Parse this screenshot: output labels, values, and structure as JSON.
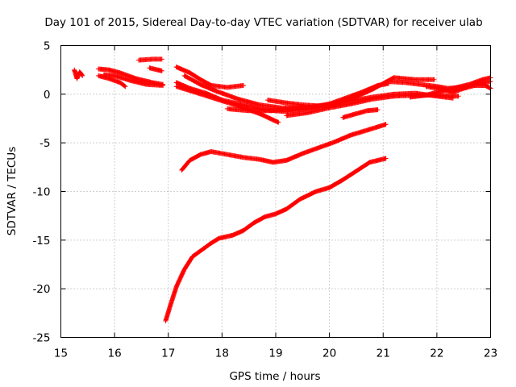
{
  "chart_data": {
    "type": "scatter",
    "title": "Day 101 of 2015, Sidereal Day-to-day VTEC variation (SDTVAR) for receiver ulab",
    "xlabel": "GPS time / hours",
    "ylabel": "SDTVAR / TECUs",
    "xlim": [
      15,
      23
    ],
    "ylim": [
      -25,
      5
    ],
    "xticks": [
      15,
      16,
      17,
      18,
      19,
      20,
      21,
      22,
      23
    ],
    "yticks": [
      -25,
      -20,
      -15,
      -10,
      -5,
      0,
      5
    ],
    "grid": true,
    "marker": "+",
    "color": "#ff0000",
    "series": [
      {
        "name": "trace-a",
        "points": [
          [
            15.25,
            2.5
          ],
          [
            15.3,
            1.6
          ],
          [
            15.35,
            2.3
          ],
          [
            15.4,
            1.9
          ]
        ]
      },
      {
        "name": "trace-b",
        "points": [
          [
            15.7,
            2.6
          ],
          [
            15.9,
            2.5
          ],
          [
            16.1,
            2.2
          ],
          [
            16.4,
            1.6
          ],
          [
            16.7,
            1.2
          ],
          [
            16.9,
            1.0
          ]
        ]
      },
      {
        "name": "trace-c",
        "points": [
          [
            15.7,
            1.9
          ],
          [
            15.9,
            1.6
          ],
          [
            16.1,
            1.2
          ],
          [
            16.2,
            0.8
          ]
        ]
      },
      {
        "name": "trace-d",
        "points": [
          [
            15.8,
            2.0
          ],
          [
            16.0,
            1.9
          ],
          [
            16.3,
            1.4
          ],
          [
            16.6,
            1.0
          ],
          [
            16.9,
            0.9
          ]
        ]
      },
      {
        "name": "trace-e",
        "points": [
          [
            16.45,
            3.5
          ],
          [
            16.7,
            3.6
          ],
          [
            16.88,
            3.6
          ]
        ]
      },
      {
        "name": "trace-f",
        "points": [
          [
            16.65,
            2.7
          ],
          [
            16.8,
            2.5
          ],
          [
            16.88,
            2.4
          ]
        ]
      },
      {
        "name": "trace-g",
        "points": [
          [
            17.15,
            2.8
          ],
          [
            17.4,
            2.2
          ],
          [
            17.6,
            1.5
          ],
          [
            17.8,
            0.9
          ],
          [
            18.1,
            0.7
          ],
          [
            18.4,
            0.9
          ]
        ]
      },
      {
        "name": "trace-h",
        "points": [
          [
            17.3,
            1.9
          ],
          [
            17.6,
            1.0
          ],
          [
            17.9,
            0.3
          ],
          [
            18.3,
            -0.5
          ],
          [
            18.7,
            -1.1
          ],
          [
            19.1,
            -1.4
          ],
          [
            19.4,
            -1.4
          ],
          [
            19.7,
            -1.3
          ],
          [
            20.0,
            -1.0
          ],
          [
            20.3,
            -0.4
          ],
          [
            20.6,
            0.2
          ],
          [
            20.9,
            0.9
          ],
          [
            21.1,
            1.1
          ]
        ]
      },
      {
        "name": "trace-i",
        "points": [
          [
            17.15,
            1.2
          ],
          [
            17.4,
            0.6
          ],
          [
            17.7,
            0.1
          ],
          [
            18.0,
            -0.6
          ],
          [
            18.4,
            -1.1
          ],
          [
            18.8,
            -1.6
          ],
          [
            19.2,
            -1.8
          ],
          [
            19.6,
            -1.5
          ],
          [
            20.0,
            -1.1
          ],
          [
            20.4,
            -0.5
          ],
          [
            20.8,
            0.5
          ],
          [
            21.2,
            1.7
          ],
          [
            21.6,
            1.5
          ],
          [
            21.95,
            1.5
          ]
        ]
      },
      {
        "name": "trace-j",
        "points": [
          [
            17.15,
            0.8
          ],
          [
            17.5,
            0.2
          ],
          [
            17.9,
            -0.5
          ],
          [
            18.3,
            -1.2
          ],
          [
            18.7,
            -2.0
          ],
          [
            19.05,
            -2.9
          ]
        ]
      },
      {
        "name": "trace-k",
        "points": [
          [
            18.1,
            -1.5
          ],
          [
            18.5,
            -1.7
          ],
          [
            18.9,
            -1.7
          ],
          [
            19.3,
            -1.5
          ],
          [
            19.6,
            -1.4
          ],
          [
            19.8,
            -1.2
          ]
        ]
      },
      {
        "name": "trace-l",
        "points": [
          [
            18.85,
            -0.6
          ],
          [
            19.2,
            -0.9
          ],
          [
            19.5,
            -1.1
          ],
          [
            19.8,
            -1.2
          ],
          [
            20.1,
            -1.0
          ],
          [
            20.4,
            -0.7
          ],
          [
            20.8,
            -0.3
          ],
          [
            21.2,
            0.0
          ],
          [
            21.6,
            0.1
          ],
          [
            22.0,
            -0.2
          ],
          [
            22.3,
            -0.4
          ]
        ]
      },
      {
        "name": "trace-m",
        "points": [
          [
            19.2,
            -2.2
          ],
          [
            19.6,
            -1.9
          ],
          [
            20.0,
            -1.4
          ],
          [
            20.4,
            -1.0
          ],
          [
            20.8,
            -0.5
          ],
          [
            21.2,
            -0.2
          ],
          [
            21.6,
            -0.1
          ],
          [
            22.0,
            -0.1
          ],
          [
            22.4,
            -0.2
          ]
        ]
      },
      {
        "name": "trace-n",
        "points": [
          [
            20.25,
            -2.4
          ],
          [
            20.5,
            -2.0
          ],
          [
            20.7,
            -1.7
          ],
          [
            20.9,
            -1.6
          ]
        ]
      },
      {
        "name": "trace-o",
        "points": [
          [
            21.1,
            1.3
          ],
          [
            21.4,
            1.2
          ],
          [
            21.7,
            1.0
          ],
          [
            22.0,
            0.8
          ],
          [
            22.2,
            0.6
          ],
          [
            22.5,
            0.7
          ],
          [
            22.7,
            1.0
          ],
          [
            23.0,
            1.3
          ]
        ]
      },
      {
        "name": "trace-p",
        "points": [
          [
            21.5,
            -0.3
          ],
          [
            21.8,
            -0.1
          ],
          [
            22.0,
            0.2
          ],
          [
            22.3,
            0.6
          ],
          [
            22.6,
            1.0
          ],
          [
            22.85,
            1.5
          ],
          [
            23.0,
            1.7
          ]
        ]
      },
      {
        "name": "trace-q",
        "points": [
          [
            21.8,
            0.8
          ],
          [
            22.1,
            0.5
          ],
          [
            22.3,
            0.2
          ],
          [
            22.5,
            0.6
          ],
          [
            22.7,
            0.9
          ],
          [
            22.9,
            0.9
          ],
          [
            23.0,
            0.6
          ]
        ]
      },
      {
        "name": "trace-r",
        "points": [
          [
            17.25,
            -7.8
          ],
          [
            17.4,
            -6.8
          ],
          [
            17.6,
            -6.2
          ],
          [
            17.8,
            -5.9
          ],
          [
            18.1,
            -6.2
          ],
          [
            18.4,
            -6.5
          ],
          [
            18.7,
            -6.7
          ],
          [
            18.95,
            -7.0
          ],
          [
            19.2,
            -6.8
          ],
          [
            19.5,
            -6.1
          ],
          [
            19.8,
            -5.5
          ],
          [
            20.1,
            -4.9
          ],
          [
            20.4,
            -4.2
          ],
          [
            20.7,
            -3.7
          ],
          [
            21.05,
            -3.1
          ]
        ]
      },
      {
        "name": "trace-s",
        "points": [
          [
            16.95,
            -23.3
          ],
          [
            17.05,
            -21.5
          ],
          [
            17.15,
            -19.8
          ],
          [
            17.3,
            -18.0
          ],
          [
            17.45,
            -16.7
          ],
          [
            17.6,
            -16.1
          ],
          [
            17.8,
            -15.3
          ],
          [
            17.95,
            -14.8
          ],
          [
            18.2,
            -14.5
          ],
          [
            18.4,
            -14.0
          ],
          [
            18.6,
            -13.2
          ],
          [
            18.8,
            -12.6
          ],
          [
            19.0,
            -12.3
          ],
          [
            19.2,
            -11.8
          ],
          [
            19.45,
            -10.8
          ],
          [
            19.75,
            -10.0
          ],
          [
            20.0,
            -9.6
          ],
          [
            20.25,
            -8.8
          ],
          [
            20.5,
            -7.9
          ],
          [
            20.75,
            -7.0
          ],
          [
            21.05,
            -6.6
          ]
        ]
      }
    ]
  }
}
